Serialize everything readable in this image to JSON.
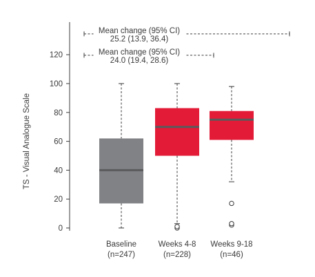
{
  "chart_data": {
    "type": "boxplot",
    "ylabel": "TS - Visual Analogue Scale",
    "ylim": [
      0,
      140
    ],
    "y_ticks": [
      0,
      20,
      40,
      60,
      80,
      100,
      120
    ],
    "grid": false,
    "categories": [
      {
        "name": "Baseline",
        "n_label": "(n=247)"
      },
      {
        "name": "Weeks 4-8",
        "n_label": "(n=228)"
      },
      {
        "name": "Weeks 9-18",
        "n_label": "(n=46)"
      }
    ],
    "boxes": [
      {
        "category": "Baseline",
        "whisker_low": 0,
        "q1": 17,
        "median": 40,
        "q3": 62,
        "whisker_high": 100,
        "outliers": [],
        "color": "#808285"
      },
      {
        "category": "Weeks 4-8",
        "whisker_low": 3,
        "q1": 50,
        "median": 70,
        "q3": 83,
        "whisker_high": 100,
        "outliers": [
          0,
          1
        ],
        "color": "#e31b37"
      },
      {
        "category": "Weeks 9-18",
        "whisker_low": 32,
        "q1": 61,
        "median": 75,
        "q3": 81,
        "whisker_high": 98,
        "outliers": [
          2,
          3,
          17
        ],
        "color": "#e31b37"
      }
    ],
    "annotations": [
      {
        "line1": "Mean change (95% CI)",
        "line2": "24.0 (19.4, 28.6)",
        "from": "Baseline",
        "to": "Weeks 4-8"
      },
      {
        "line1": "Mean change (95% CI)",
        "line2": "25.2 (13.9, 36.4)",
        "from": "Baseline",
        "to": "Weeks 9-18"
      }
    ]
  }
}
